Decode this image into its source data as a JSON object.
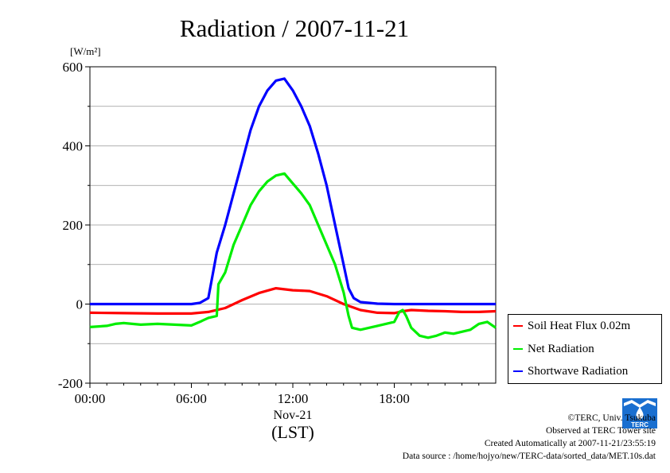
{
  "chart_data": {
    "type": "line",
    "title": "Radiation / 2007-11-21",
    "ylabel": "[W/m²]",
    "ylim": [
      -200,
      600
    ],
    "yticks": [
      600,
      400,
      200,
      0,
      -200
    ],
    "xlim": [
      0,
      24
    ],
    "xticks": [
      {
        "x": 0,
        "label": "00:00"
      },
      {
        "x": 6,
        "label": "06:00"
      },
      {
        "x": 12,
        "label": "12:00"
      },
      {
        "x": 18,
        "label": "18:00"
      }
    ],
    "xlabel_date": "Nov-21",
    "xlabel": "(LST)",
    "grid": true,
    "legend_position": "right",
    "series": [
      {
        "name": "Soil Heat Flux 0.02m",
        "color": "#ff0000",
        "points": [
          [
            0,
            -22
          ],
          [
            2,
            -23
          ],
          [
            4,
            -24
          ],
          [
            6,
            -24
          ],
          [
            7,
            -20
          ],
          [
            8,
            -10
          ],
          [
            9,
            10
          ],
          [
            10,
            28
          ],
          [
            11,
            40
          ],
          [
            12,
            35
          ],
          [
            13,
            33
          ],
          [
            14,
            20
          ],
          [
            15,
            0
          ],
          [
            16,
            -15
          ],
          [
            17,
            -22
          ],
          [
            18,
            -23
          ],
          [
            18.5,
            -18
          ],
          [
            19,
            -15
          ],
          [
            20,
            -17
          ],
          [
            21,
            -18
          ],
          [
            22,
            -20
          ],
          [
            23,
            -20
          ],
          [
            24,
            -18
          ]
        ]
      },
      {
        "name": "Net Radiation",
        "color": "#00ee00",
        "points": [
          [
            0,
            -58
          ],
          [
            1,
            -55
          ],
          [
            1.5,
            -50
          ],
          [
            2,
            -48
          ],
          [
            3,
            -52
          ],
          [
            4,
            -50
          ],
          [
            5,
            -52
          ],
          [
            6,
            -54
          ],
          [
            6.5,
            -45
          ],
          [
            7,
            -35
          ],
          [
            7.5,
            -30
          ],
          [
            7.6,
            50
          ],
          [
            8,
            80
          ],
          [
            8.5,
            150
          ],
          [
            9,
            200
          ],
          [
            9.5,
            250
          ],
          [
            10,
            285
          ],
          [
            10.5,
            310
          ],
          [
            11,
            325
          ],
          [
            11.5,
            330
          ],
          [
            12,
            305
          ],
          [
            12.5,
            280
          ],
          [
            13,
            250
          ],
          [
            13.5,
            200
          ],
          [
            14,
            150
          ],
          [
            14.5,
            100
          ],
          [
            15,
            30
          ],
          [
            15.3,
            -30
          ],
          [
            15.5,
            -60
          ],
          [
            16,
            -65
          ],
          [
            17,
            -55
          ],
          [
            18,
            -45
          ],
          [
            18.3,
            -20
          ],
          [
            18.5,
            -15
          ],
          [
            18.7,
            -30
          ],
          [
            19,
            -60
          ],
          [
            19.5,
            -80
          ],
          [
            20,
            -85
          ],
          [
            20.5,
            -80
          ],
          [
            21,
            -72
          ],
          [
            21.5,
            -75
          ],
          [
            22,
            -70
          ],
          [
            22.5,
            -65
          ],
          [
            23,
            -50
          ],
          [
            23.5,
            -45
          ],
          [
            24,
            -60
          ]
        ]
      },
      {
        "name": "Shortwave Radiation",
        "color": "#0000ff",
        "points": [
          [
            0,
            0
          ],
          [
            6,
            0
          ],
          [
            6.5,
            3
          ],
          [
            7,
            15
          ],
          [
            7.5,
            130
          ],
          [
            8,
            200
          ],
          [
            8.5,
            280
          ],
          [
            9,
            360
          ],
          [
            9.5,
            440
          ],
          [
            10,
            500
          ],
          [
            10.5,
            540
          ],
          [
            11,
            565
          ],
          [
            11.5,
            570
          ],
          [
            12,
            540
          ],
          [
            12.5,
            500
          ],
          [
            13,
            450
          ],
          [
            13.5,
            380
          ],
          [
            14,
            300
          ],
          [
            14.5,
            200
          ],
          [
            15,
            100
          ],
          [
            15.3,
            40
          ],
          [
            15.6,
            15
          ],
          [
            16,
            5
          ],
          [
            17,
            1
          ],
          [
            18,
            0
          ],
          [
            24,
            0
          ]
        ]
      }
    ]
  },
  "credits": {
    "copyright": "©TERC, Univ. Tsukuba",
    "site": "Observed at TERC Tower site",
    "created": "Created Automatically at 2007-11-21/23:55:19",
    "source": "Data source : /home/hojyo/new/TERC-data/sorted_data/MET.10s.dat"
  },
  "logo": {
    "text": "TERC",
    "color": "#1a6fd0"
  }
}
